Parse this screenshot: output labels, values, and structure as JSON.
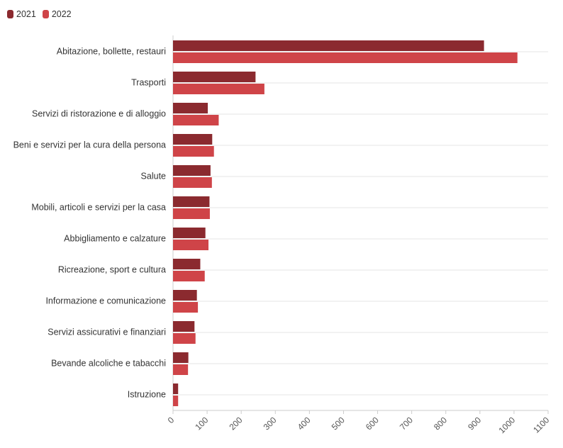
{
  "chart_data": {
    "type": "bar",
    "orientation": "horizontal",
    "title": "",
    "xlabel": "",
    "ylabel": "",
    "categories": [
      "Abitazione, bollette, restauri",
      "Trasporti",
      "Servizi di ristorazione e di alloggio",
      "Beni e servizi per la cura della persona",
      "Salute",
      "Mobili, articoli e servizi per la casa",
      "Abbigliamento e calzature",
      "Ricreazione, sport e cultura",
      "Informazione e comunicazione",
      "Servizi assicurativi e finanziari",
      "Bevande alcoliche e tabacchi",
      "Istruzione"
    ],
    "series": [
      {
        "name": "2021",
        "color": "#8b2a2f",
        "values": [
          912,
          242,
          102,
          115,
          110,
          107,
          95,
          80,
          70,
          63,
          45,
          15
        ]
      },
      {
        "name": "2022",
        "color": "#cf4448",
        "values": [
          1010,
          268,
          134,
          120,
          114,
          108,
          104,
          93,
          73,
          66,
          44,
          15
        ]
      }
    ],
    "xlim": [
      0,
      1100
    ],
    "xticks": [
      "0",
      "100",
      "200",
      "300",
      "400",
      "500",
      "600",
      "700",
      "800",
      "900",
      "1000",
      "1100"
    ],
    "grid": true,
    "legend_position": "top-left"
  }
}
